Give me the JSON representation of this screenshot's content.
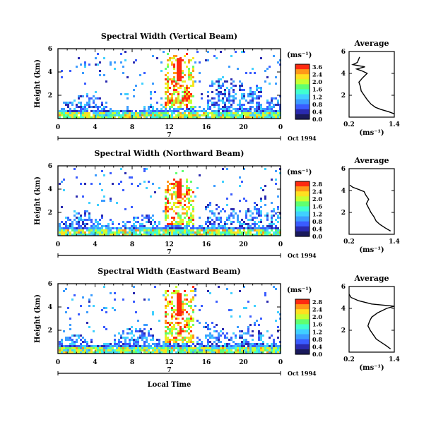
{
  "figure": {
    "x_axis_label": "Local Time",
    "month_label": "Oct 1994",
    "day_marker": "7",
    "x_ticks": [
      "0",
      "4",
      "8",
      "12",
      "16",
      "20",
      "0"
    ],
    "y_axis_label": "Height (km)",
    "colorbar_unit": "(ms⁻¹)",
    "profile_title": "Average",
    "profile_unit": "(ms⁻¹)",
    "profile_x_ticks": [
      "0.2",
      "1.4"
    ]
  },
  "chart_data": [
    {
      "type": "heatmap",
      "title": "Spectral Width (Vertical Beam)",
      "ylabel": "Height (km)",
      "xlim": [
        0,
        24
      ],
      "ylim": [
        0,
        6
      ],
      "y_ticks": [
        2,
        4,
        6
      ],
      "colorbar": {
        "ticks": [
          "3.6",
          "2.4",
          "2.0",
          "1.6",
          "1.2",
          "0.8",
          "0.4",
          "0.0"
        ],
        "range": [
          0,
          3.6
        ]
      },
      "description_values": {
        "max_echo_top_km": 5.5,
        "core_time_range": [
          12,
          14
        ],
        "core_value": 3.2
      },
      "profile": {
        "title": "Average",
        "xlim": [
          0.2,
          1.4
        ],
        "ylim": [
          0,
          6
        ],
        "y_ticks": [
          2,
          4,
          6
        ],
        "points": [
          [
            1.4,
            0.3
          ],
          [
            1.25,
            0.5
          ],
          [
            1.05,
            0.7
          ],
          [
            0.9,
            0.9
          ],
          [
            0.78,
            1.2
          ],
          [
            0.68,
            1.6
          ],
          [
            0.6,
            2.0
          ],
          [
            0.52,
            2.4
          ],
          [
            0.5,
            2.8
          ],
          [
            0.46,
            3.2
          ],
          [
            0.56,
            3.6
          ],
          [
            0.68,
            4.0
          ],
          [
            0.56,
            4.2
          ],
          [
            0.4,
            4.4
          ],
          [
            0.62,
            4.6
          ],
          [
            0.3,
            4.8
          ],
          [
            0.42,
            5.0
          ],
          [
            0.48,
            5.5
          ]
        ]
      }
    },
    {
      "type": "heatmap",
      "title": "Spectral Width (Northward Beam)",
      "ylabel": "Height (km)",
      "xlim": [
        0,
        24
      ],
      "ylim": [
        0,
        6
      ],
      "y_ticks": [
        2,
        4,
        6
      ],
      "colorbar": {
        "ticks": [
          "2.8",
          "2.4",
          "2.0",
          "1.6",
          "1.2",
          "0.8",
          "0.4",
          "0.0"
        ],
        "range": [
          0,
          2.8
        ]
      },
      "description_values": {
        "max_echo_top_km": 5.0,
        "core_time_range": [
          12,
          14
        ],
        "core_value": 2.4
      },
      "profile": {
        "title": "Average",
        "xlim": [
          0.2,
          1.4
        ],
        "ylim": [
          0,
          6
        ],
        "y_ticks": [
          2,
          4,
          6
        ],
        "points": [
          [
            1.3,
            0.3
          ],
          [
            1.15,
            0.6
          ],
          [
            1.02,
            0.9
          ],
          [
            0.92,
            1.2
          ],
          [
            0.86,
            1.6
          ],
          [
            0.78,
            2.0
          ],
          [
            0.72,
            2.4
          ],
          [
            0.66,
            2.8
          ],
          [
            0.72,
            3.2
          ],
          [
            0.64,
            3.6
          ],
          [
            0.6,
            3.9
          ],
          [
            0.45,
            4.1
          ],
          [
            0.3,
            4.3
          ],
          [
            0.22,
            4.5
          ]
        ]
      }
    },
    {
      "type": "heatmap",
      "title": "Spectral Width (Eastward Beam)",
      "ylabel": "Height (km)",
      "xlim": [
        0,
        24
      ],
      "ylim": [
        0,
        6
      ],
      "y_ticks": [
        2,
        4,
        6
      ],
      "colorbar": {
        "ticks": [
          "2.8",
          "2.4",
          "2.0",
          "1.6",
          "1.2",
          "0.8",
          "0.4",
          "0.0"
        ],
        "range": [
          0,
          2.8
        ]
      },
      "description_values": {
        "max_echo_top_km": 5.5,
        "core_time_range": [
          12,
          14
        ],
        "core_value": 2.6
      },
      "profile": {
        "title": "Average",
        "xlim": [
          0.2,
          1.4
        ],
        "ylim": [
          0,
          6
        ],
        "y_ticks": [
          2,
          4,
          6
        ],
        "points": [
          [
            1.3,
            0.3
          ],
          [
            1.18,
            0.6
          ],
          [
            1.05,
            0.9
          ],
          [
            0.92,
            1.2
          ],
          [
            0.84,
            1.6
          ],
          [
            0.76,
            2.0
          ],
          [
            0.7,
            2.4
          ],
          [
            0.74,
            2.8
          ],
          [
            0.8,
            3.2
          ],
          [
            0.96,
            3.6
          ],
          [
            1.2,
            4.0
          ],
          [
            1.4,
            4.2
          ],
          [
            0.8,
            4.4
          ],
          [
            0.45,
            4.7
          ],
          [
            0.25,
            5.0
          ],
          [
            0.2,
            5.3
          ]
        ]
      }
    }
  ]
}
